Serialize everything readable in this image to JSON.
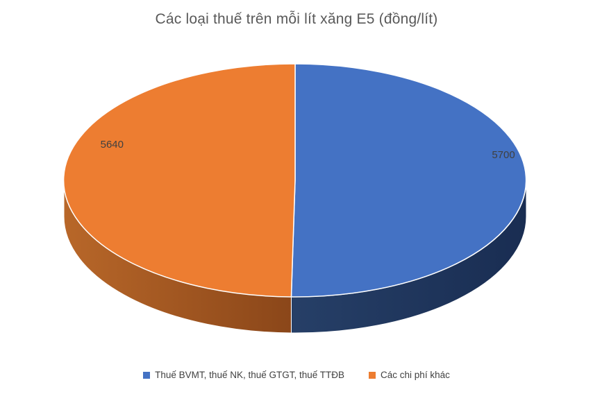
{
  "page": {
    "background": "#FFFFFF"
  },
  "chart_data": {
    "type": "pie",
    "style": "3d-pie",
    "title": "Các loại thuế trên mỗi lít xăng E5 (đồng/lít)",
    "legend_position": "bottom",
    "data_labels_shown": true,
    "start_angle_deg": 0,
    "direction": "clockwise",
    "series": [
      {
        "label": "Thuế BVMT, thuế NK, thuế GTGT, thuế TTĐB",
        "value": 5700,
        "color": "#4472C4",
        "shade_near_split": "#263F67",
        "shade_outer": "#192D52"
      },
      {
        "label": "Các chi phí khác",
        "value": 5640,
        "color": "#ED7D31",
        "shade_near_split": "#8A4619",
        "shade_outer": "#B86729"
      }
    ]
  }
}
